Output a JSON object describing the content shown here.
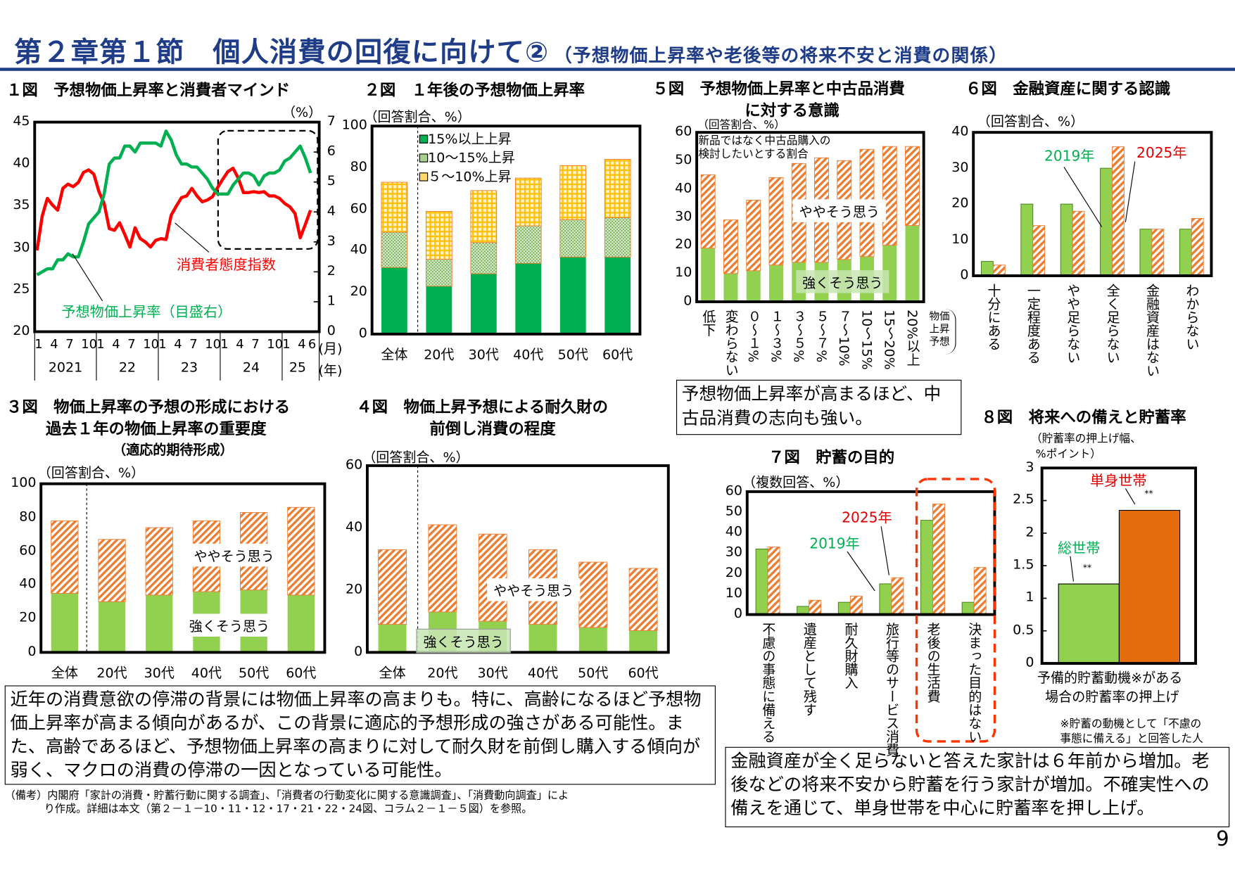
{
  "header": {
    "title": "第２章第１節　個人消費の回復に向けて②",
    "subtitle": "（予想物価上昇率や老後等の将来不安と消費の関係）"
  },
  "figures": {
    "fig1": {
      "title": "１図　予想物価上昇率と消費者マインド",
      "unit": "（%）",
      "month_unit": "(月)",
      "year_unit": "(年)",
      "label_red": "消費者態度指数",
      "label_green": "予想物価上昇率（目盛右）"
    },
    "fig2": {
      "title": "２図　１年後の予想物価上昇率",
      "unit": "（回答割合、%）"
    },
    "fig5": {
      "title_line1": "５図　予想物価上昇率と中古品消費",
      "title_line2": "に対する意識",
      "unit": "（回答割合、%）",
      "note": "新品ではなく中古品購入の\n検討したいとする割合",
      "label_some": "ややそう思う",
      "label_strong": "強くそう思う",
      "axis_bracket": "物価上昇予想"
    },
    "fig6": {
      "title": "６図　金融資産に関する認識",
      "unit": "（回答割合、%）",
      "label_2019": "2019年",
      "label_2025": "2025年"
    },
    "fig3": {
      "title_line1": "３図　物価上昇率の予想の形成における",
      "title_line2": "過去１年の物価上昇率の重要度",
      "title_line3": "（適応的期待形成）",
      "unit": "（回答割合、%）",
      "label_some": "ややそう思う",
      "label_strong": "強くそう思う"
    },
    "fig4": {
      "title_line1": "４図　物価上昇予想による耐久財の",
      "title_line2": "前倒し消費の程度",
      "unit": "（回答割合、%）",
      "label_some": "ややそう思う",
      "label_strong": "強くそう思う"
    },
    "fig7": {
      "title": "７図　貯蓄の目的",
      "unit": "（複数回答、%）",
      "label_2019": "2019年",
      "label_2025": "2025年"
    },
    "fig8": {
      "title": "８図　将来への備えと貯蓄率",
      "unit_line1": "（貯蓄率の押上げ幅、",
      "unit_line2": "%ポイント）",
      "xlabel_line1": "予備的貯蓄動機※がある",
      "xlabel_line2": "場合の貯蓄率の押上げ",
      "footnote_line1": "※貯蓄の動機として「不慮の",
      "footnote_line2": "事態に備える」と回答した人",
      "sig": "**"
    }
  },
  "textboxes": {
    "fig5_summary": "予想物価上昇率が高まるほど、中古品消費の志向も強い。",
    "left_summary": "近年の消費意欲の停滞の背景には物価上昇率の高まりも。特に、高齢になるほど予想物価上昇率が高まる傾向があるが、この背景に適応的予想形成の強さがある可能性。また、高齢であるほど、予想物価上昇率の高まりに対して耐久財を前倒し購入する傾向が弱く、マクロの消費の停滞の一因となっている可能性。",
    "right_summary": "金融資産が全く足らないと答えた家計は６年前から増加。老後などの将来不安から貯蓄を行う家計が増加。不確実性への備えを通じて、単身世帯を中心に貯蓄率を押し上げ。",
    "source_note_line1": "（備考）内閣府「家計の消費・貯蓄行動に関する調査」、「消費者の行動変化に関する意識調査」、「消費動向調査」によ",
    "source_note_line2": "り作成。詳細は本文（第２－１－10・11・12・17・21・22・24図、コラム２－１－５図）を参照。"
  },
  "page_number": "9",
  "colors": {
    "title_blue": "#1F3C88",
    "red": "#FF0000",
    "green": "#00B050",
    "bar_green": "#92D050",
    "hatch_orange": "#ED7D31",
    "single_orange": "#E46C0A",
    "yellow": "#FFD966"
  },
  "chart_data": [
    {
      "type": "line",
      "id": "fig1",
      "x": [
        "2021-01",
        "2021-02",
        "2021-03",
        "2021-04",
        "2021-05",
        "2021-06",
        "2021-07",
        "2021-08",
        "2021-09",
        "2021-10",
        "2021-11",
        "2021-12",
        "2022-01",
        "2022-02",
        "2022-03",
        "2022-04",
        "2022-05",
        "2022-06",
        "2022-07",
        "2022-08",
        "2022-09",
        "2022-10",
        "2022-11",
        "2022-12",
        "2023-01",
        "2023-02",
        "2023-03",
        "2023-04",
        "2023-05",
        "2023-06",
        "2023-07",
        "2023-08",
        "2023-09",
        "2023-10",
        "2023-11",
        "2023-12",
        "2024-01",
        "2024-02",
        "2024-03",
        "2024-04",
        "2024-05",
        "2024-06",
        "2024-07",
        "2024-08",
        "2024-09",
        "2024-10",
        "2024-11",
        "2024-12",
        "2025-01",
        "2025-02",
        "2025-03",
        "2025-04",
        "2025-05",
        "2025-06"
      ],
      "x_month_ticks": [
        [
          "2021-01",
          "1"
        ],
        [
          "2021-04",
          "4"
        ],
        [
          "2021-07",
          "7"
        ],
        [
          "2021-10",
          "10"
        ],
        [
          "2022-01",
          "1"
        ],
        [
          "2022-04",
          "4"
        ],
        [
          "2022-07",
          "7"
        ],
        [
          "2022-10",
          "10"
        ],
        [
          "2023-01",
          "1"
        ],
        [
          "2023-04",
          "4"
        ],
        [
          "2023-07",
          "7"
        ],
        [
          "2023-10",
          "10"
        ],
        [
          "2024-01",
          "1"
        ],
        [
          "2024-04",
          "4"
        ],
        [
          "2024-07",
          "7"
        ],
        [
          "2024-10",
          "10"
        ],
        [
          "2025-01",
          "1"
        ],
        [
          "2025-04",
          "4"
        ],
        [
          "2025-06",
          "6"
        ]
      ],
      "year_labels": [
        "2021",
        "22",
        "23",
        "24",
        "25"
      ],
      "series": [
        {
          "name": "消費者態度指数",
          "axis": "left",
          "color": "#FF0000",
          "values": [
            29.7,
            33.8,
            35.9,
            35.1,
            34.5,
            37.1,
            37.6,
            37.3,
            37.8,
            39.0,
            39.3,
            38.8,
            36.7,
            35.3,
            32.3,
            32.1,
            33.0,
            31.6,
            30.1,
            32.4,
            31.1,
            30.7,
            30.1,
            30.9,
            31.1,
            31.0,
            33.9,
            35.0,
            36.0,
            36.2,
            37.1,
            36.2,
            35.5,
            35.7,
            36.1,
            37.2,
            38.2,
            39.1,
            39.5,
            38.3,
            36.6,
            36.6,
            36.7,
            36.6,
            36.7,
            36.2,
            36.2,
            35.9,
            35.3,
            34.9,
            34.1,
            31.2,
            32.8,
            34.5
          ]
        },
        {
          "name": "予想物価上昇率（目盛右）",
          "axis": "right",
          "color": "#00B050",
          "values": [
            1.9,
            2.0,
            2.1,
            2.1,
            2.4,
            2.4,
            2.6,
            2.5,
            2.5,
            3.0,
            3.6,
            3.8,
            4.0,
            4.6,
            5.6,
            5.8,
            5.8,
            6.2,
            6.2,
            6.0,
            6.3,
            6.3,
            6.3,
            6.3,
            6.2,
            6.7,
            6.4,
            5.9,
            5.6,
            5.6,
            5.5,
            5.5,
            5.3,
            5.1,
            4.8,
            4.6,
            4.6,
            4.6,
            4.9,
            5.1,
            5.3,
            5.3,
            5.2,
            4.9,
            5.2,
            5.3,
            5.3,
            5.4,
            5.7,
            5.8,
            6.0,
            6.2,
            5.8,
            5.3
          ]
        }
      ],
      "yleft": {
        "range": [
          20,
          45
        ],
        "ticks": [
          20,
          25,
          30,
          35,
          40,
          45
        ]
      },
      "yright": {
        "range": [
          0,
          7
        ],
        "ticks": [
          0,
          1,
          2,
          3,
          4,
          5,
          6,
          7
        ],
        "unit": "%"
      },
      "highlight_box": "2024-01 to 2025-06 (dashed)"
    },
    {
      "type": "bar",
      "stacked": true,
      "id": "fig2",
      "categories": [
        "全体",
        "20代",
        "30代",
        "40代",
        "50代",
        "60代"
      ],
      "series": [
        {
          "name": "15%以上上昇",
          "values": [
            32,
            23,
            29,
            34,
            37,
            37
          ]
        },
        {
          "name": "10～15%上昇",
          "values": [
            17,
            13,
            15,
            18,
            18,
            19
          ]
        },
        {
          "name": "５～10%上昇",
          "values": [
            24,
            23,
            25,
            23,
            26,
            28
          ]
        }
      ],
      "ylim": [
        0,
        100
      ],
      "yticks": [
        0,
        20,
        40,
        60,
        80,
        100
      ]
    },
    {
      "type": "bar",
      "stacked": true,
      "id": "fig5",
      "categories": [
        "低下",
        "変わらない",
        "０～１%",
        "１～３%",
        "３～５%",
        "５～７%",
        "７～10%",
        "10～15%",
        "15～20%",
        "20%以上"
      ],
      "series": [
        {
          "name": "強くそう思う",
          "values": [
            19,
            10,
            11,
            13,
            14,
            14,
            15,
            16,
            20,
            27
          ]
        },
        {
          "name": "ややそう思う",
          "values": [
            26,
            19,
            25,
            31,
            35,
            37,
            35,
            38,
            35,
            28
          ]
        }
      ],
      "ylim": [
        0,
        60
      ],
      "yticks": [
        0,
        10,
        20,
        30,
        40,
        50,
        60
      ]
    },
    {
      "type": "bar",
      "stacked": false,
      "id": "fig6",
      "categories": [
        "十分にある",
        "一定程度ある",
        "やや足らない",
        "全く足らない",
        "金融資産はない",
        "わからない"
      ],
      "series": [
        {
          "name": "2019年",
          "values": [
            4,
            20,
            20,
            30,
            13,
            13
          ]
        },
        {
          "name": "2025年",
          "values": [
            3,
            14,
            18,
            36,
            13,
            16
          ]
        }
      ],
      "ylim": [
        0,
        40
      ],
      "yticks": [
        0,
        10,
        20,
        30,
        40
      ]
    },
    {
      "type": "bar",
      "stacked": true,
      "id": "fig3",
      "categories": [
        "全体",
        "20代",
        "30代",
        "40代",
        "50代",
        "60代"
      ],
      "series": [
        {
          "name": "強くそう思う",
          "values": [
            35,
            30,
            34,
            36,
            37,
            34
          ]
        },
        {
          "name": "ややそう思う",
          "values": [
            43,
            37,
            40,
            42,
            46,
            52
          ]
        }
      ],
      "ylim": [
        0,
        100
      ],
      "yticks": [
        0,
        20,
        40,
        60,
        80,
        100
      ]
    },
    {
      "type": "bar",
      "stacked": true,
      "id": "fig4",
      "categories": [
        "全体",
        "20代",
        "30代",
        "40代",
        "50代",
        "60代"
      ],
      "series": [
        {
          "name": "強くそう思う",
          "values": [
            9,
            13,
            10,
            9,
            8,
            7
          ]
        },
        {
          "name": "ややそう思う",
          "values": [
            24,
            28,
            28,
            24,
            21,
            20
          ]
        }
      ],
      "ylim": [
        0,
        60
      ],
      "yticks": [
        0,
        20,
        40,
        60
      ]
    },
    {
      "type": "bar",
      "stacked": false,
      "id": "fig7",
      "categories": [
        "不慮の事態に備える",
        "遺産として残す",
        "耐久財購入",
        "旅行等のサービス消費",
        "老後の生活費",
        "決まった目的はない"
      ],
      "series": [
        {
          "name": "2019年",
          "values": [
            32,
            4,
            6,
            15,
            46,
            6
          ]
        },
        {
          "name": "2025年",
          "values": [
            33,
            7,
            9,
            18,
            54,
            23
          ]
        }
      ],
      "ylim": [
        0,
        60
      ],
      "yticks": [
        0,
        10,
        20,
        30,
        40,
        50,
        60
      ]
    },
    {
      "type": "bar",
      "id": "fig8",
      "categories": [
        "総世帯",
        "単身世帯"
      ],
      "values": [
        1.22,
        2.35
      ],
      "colors": [
        "#92D050",
        "#E46C0A"
      ],
      "ylim": [
        0,
        3
      ],
      "yticks": [
        0,
        0.5,
        1,
        1.5,
        2,
        2.5,
        3
      ]
    }
  ]
}
